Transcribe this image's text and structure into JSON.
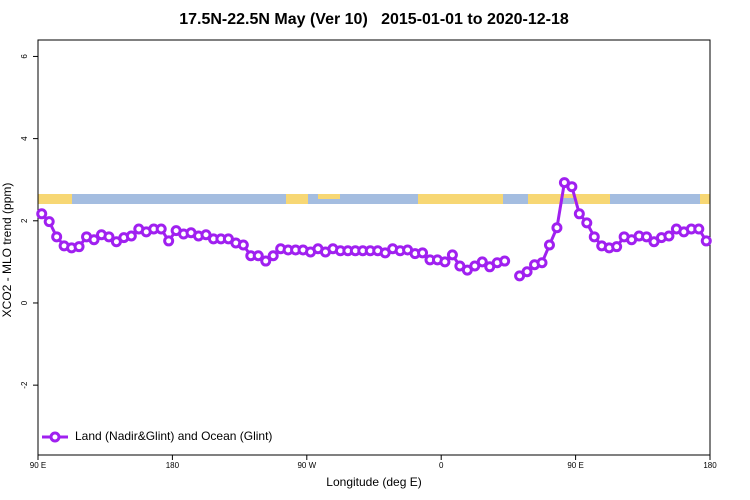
{
  "chart_data": {
    "type": "line",
    "title": "17.5N-22.5N May (Ver 10)   2015-01-01 to 2020-12-18",
    "x_label": "Longitude (deg E)",
    "y_label": "XCO2 - MLO trend (ppm)",
    "x": [
      92.5,
      97.5,
      102.5,
      107.5,
      112.5,
      117.5,
      122.5,
      127.5,
      132.5,
      137.5,
      142.5,
      147.5,
      152.5,
      157.5,
      162.5,
      167.5,
      172.5,
      177.5,
      182.5,
      187.5,
      192.5,
      197.5,
      202.5,
      207.5,
      212.5,
      217.5,
      222.5,
      227.5,
      232.5,
      237.5,
      242.5,
      247.5,
      252.5,
      257.5,
      262.5,
      267.5,
      272.5,
      277.5,
      282.5,
      287.5,
      292.5,
      297.5,
      302.5,
      307.5,
      312.5,
      317.5,
      322.5,
      327.5,
      332.5,
      337.5,
      342.5,
      347.5,
      352.5,
      357.5,
      362.5,
      367.5,
      372.5,
      377.5,
      382.5,
      387.5,
      392.5,
      397.5,
      402.5,
      407.5,
      412.5,
      417.5,
      422.5,
      427.5,
      432.5,
      437.5,
      442.5,
      447.5,
      452.5,
      457.5,
      462.5,
      467.5,
      472.5,
      477.5,
      482.5,
      487.5,
      492.5,
      497.5,
      502.5,
      507.5,
      512.5,
      517.5,
      522.5,
      527.5,
      532.5,
      537.5
    ],
    "series": [
      {
        "name": "Land (Nadir&Glint) and Ocean (Glint)",
        "color": "#a020f0",
        "values": [
          2.17,
          1.98,
          1.61,
          1.39,
          1.34,
          1.37,
          1.61,
          1.54,
          1.66,
          1.61,
          1.49,
          1.59,
          1.63,
          1.8,
          1.73,
          1.8,
          1.8,
          1.51,
          1.76,
          1.68,
          1.71,
          1.63,
          1.66,
          1.56,
          1.56,
          1.56,
          1.46,
          1.41,
          1.15,
          1.15,
          1.02,
          1.15,
          1.32,
          1.29,
          1.29,
          1.29,
          1.24,
          1.32,
          1.24,
          1.32,
          1.27,
          1.27,
          1.27,
          1.27,
          1.27,
          1.27,
          1.22,
          1.32,
          1.27,
          1.29,
          1.2,
          1.22,
          1.05,
          1.05,
          1.0,
          1.17,
          0.9,
          0.8,
          0.9,
          1.0,
          0.88,
          0.98,
          1.02,
          null,
          0.66,
          0.76,
          0.93,
          0.98,
          1.41,
          1.83,
          2.93,
          2.83,
          2.17,
          1.95,
          1.61,
          1.39,
          1.34,
          1.37,
          1.61,
          1.54,
          1.63,
          1.61,
          1.49,
          1.59,
          1.63,
          1.8,
          1.73,
          1.8,
          1.8,
          1.51
        ]
      }
    ],
    "xlim": [
      90,
      540
    ],
    "xticks": [
      {
        "value": 90,
        "label": "90 E"
      },
      {
        "value": 180,
        "label": "180"
      },
      {
        "value": 270,
        "label": "90 W"
      },
      {
        "value": 360,
        "label": "0"
      },
      {
        "value": 450,
        "label": "90 E"
      },
      {
        "value": 540,
        "label": "180"
      }
    ],
    "ylim": [
      -3.7,
      6.4
    ],
    "yticks": [
      -2,
      0,
      2,
      4,
      6
    ],
    "legend": "bottom-left"
  }
}
